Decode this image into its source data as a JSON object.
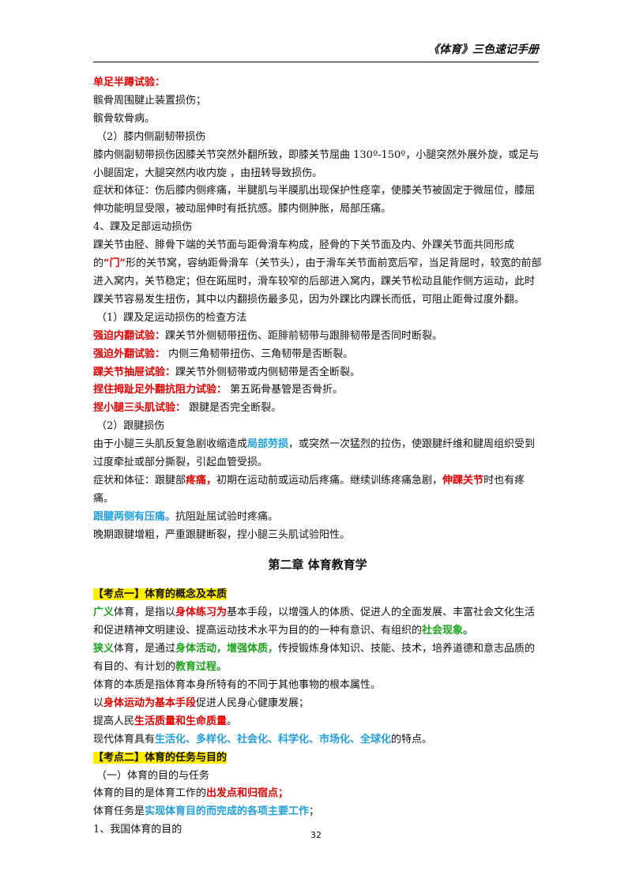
{
  "header": {
    "title": "《体育》三色速记手册"
  },
  "page_number": "32",
  "colors": {
    "red": "#e60000",
    "green": "#1aa21a",
    "blue": "#1f9fe0",
    "highlight": "#ffee00"
  },
  "lines": {
    "l1": "单足半蹲试验：",
    "l2": "髌骨周围腱止装置损伤；",
    "l3": "髌骨软骨病。",
    "l4": "（2）膝内侧副韧带损伤",
    "l5": "膝内侧副韧带损伤因膝关节突然外翻所致，即膝关节屈曲 130º-150º，小腿突然外展外旋，或足与小腿固定，大腿突然内收内旋 ，由扭转导致损伤。",
    "l6": "症状和体征：伤后膝内侧疼痛，半腱肌与半膜肌出现保护性痉挛，使膝关节被固定于微屈位，膝屈伸功能明显受限，被动屈伸时有抵抗感。膝内侧肿胀，局部压痛。",
    "l7": "4、踝及足部运动损伤",
    "l8a": "踝关节由胫、腓骨下端的关节面与距骨滑车构成，胫骨的下关节面及内、外踝关节面共同形成的",
    "l8b": "“门”",
    "l8c": "形的关节窝，容纳距骨滑车（关节头），由于滑车关节面前宽后窄，当足背屈时，较宽的前部进入窝内，关节稳定；但在跖屈时，滑车较窄的后部进入窝内，踝关节松动且能作侧方运动，此时踝关节容易发生扭伤，其中以内翻损伤最多见，因为外踝比内踝长而低，可阻止距骨过度外翻。",
    "l9": "（1）踝及足运动损伤的检查方法",
    "l10a": "强迫内翻试验：",
    "l10b": "踝关节外侧韧带扭伤、距腓前韧带与跟腓韧带是否同时断裂。",
    "l11a": "强迫外翻试验：",
    "l11b": " 内侧三角韧带扭伤、三角韧带是否断裂。",
    "l12a": "踝关节抽屉试验：",
    "l12b": "踝关节外侧韧带或内侧韧带是否全断裂。",
    "l13a": "捏住拇趾足外翻抗阻力试验：",
    "l13b": " 第五跖骨基管是否骨折。",
    "l14a": "捏小腿三头肌试验：",
    "l14b": " 跟腱是否完全断裂。",
    "l15": "（2）跟腱损伤",
    "l16a": "由于小腿三头肌反复急剧收缩造成",
    "l16b": "局部劳损",
    "l16c": "，或突然一次猛烈的拉伤，使跟腱纤维和腱周组织受到过度牵扯或部分撕裂，引起血管受损。",
    "l17a": "症状和体征：跟腱部",
    "l17b": "疼痛，",
    "l17c": "初期在运动前或运动后疼痛。继续训练疼痛急剧，",
    "l17d": "伸踝关节",
    "l17e": "时也有疼痛。",
    "l18a": "跟腱两侧有压痛。",
    "l18b": "抗阻趾屈试验时疼痛。",
    "l19": "晚期跟腱增粗，严重跟腱断裂，捏小腿三头肌试验阳性。",
    "chapter": "第二章  体育教育学",
    "kd1": "【考点一】体育的概念及本质",
    "l20a": "广义",
    "l20b": "体育，是指以",
    "l20c": "身体练习为",
    "l20d": "基本手段，以增强人的体质、促进人的全面发展、丰富社会文化生活和促进精神文明建设、提高运动技术水平为目的的一种有意识、有组织的",
    "l20e": "社会现象。",
    "l21a": "狭义",
    "l21b": "体育，是通过",
    "l21c": "身体活动，增强体质，",
    "l21d": "传授锻炼身体知识、技能、技术，培养道德和意志品质的有目的、有计划的",
    "l21e": "教育过程。",
    "l22": "体育的本质是指体育本身所特有的不同于其他事物的根本属性。",
    "l23a": "以",
    "l23b": "身体运动为基本手段",
    "l23c": "促进人民身心健康发展；",
    "l24a": "提高人民",
    "l24b": "生活质量和生命质量",
    "l24c": "。",
    "l25a": "现代体育具有",
    "l25b": "生活化、多样化、社会化、科学化、市场化、全球化",
    "l25c": "的特点。",
    "kd2": "【考点二】体育的任务与目的",
    "l26": "（一）体育的目的与任务",
    "l27a": "体育的目的是体育工作的",
    "l27b": "出发点和归宿点；",
    "l28a": "体育任务是",
    "l28b": "实现体育目的而完成的各项主要工作",
    "l28c": "；",
    "l29": "1、我国体育的目的"
  }
}
